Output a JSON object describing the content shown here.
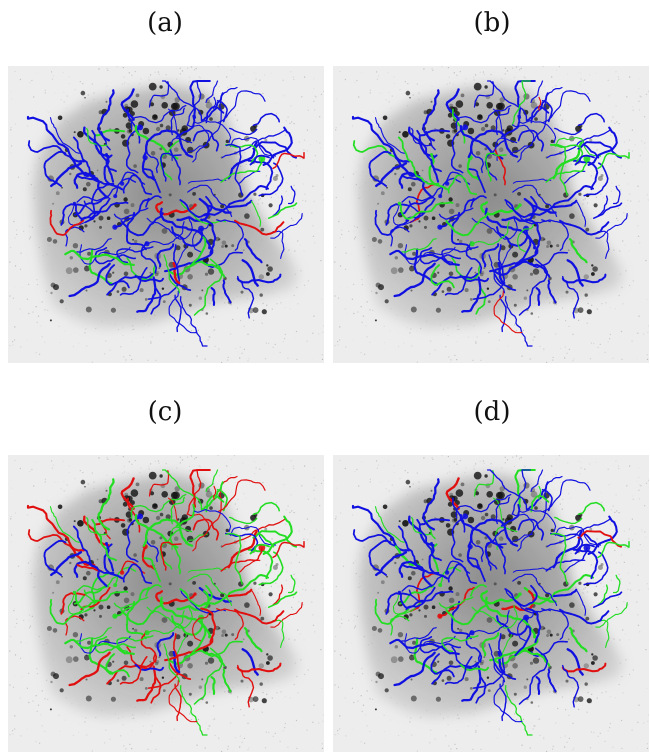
{
  "figure": {
    "panels": [
      {
        "id": "a",
        "label": "(a)",
        "variant": "blue-dominant-with-red-accents"
      },
      {
        "id": "b",
        "label": "(b)",
        "variant": "blue-dominant-fewer-red"
      },
      {
        "id": "c",
        "label": "(c)",
        "variant": "green-and-red-dominant"
      },
      {
        "id": "d",
        "label": "(d)",
        "variant": "blue-dominant-with-green"
      }
    ],
    "colors": {
      "background": "#ffffff",
      "cell_bg": "#ededed",
      "cell_body": "#a9a9a9",
      "puncta": "#1a1a1a",
      "blue_track": "#1010e0",
      "green_track": "#22dd22",
      "red_track": "#e01010"
    }
  }
}
